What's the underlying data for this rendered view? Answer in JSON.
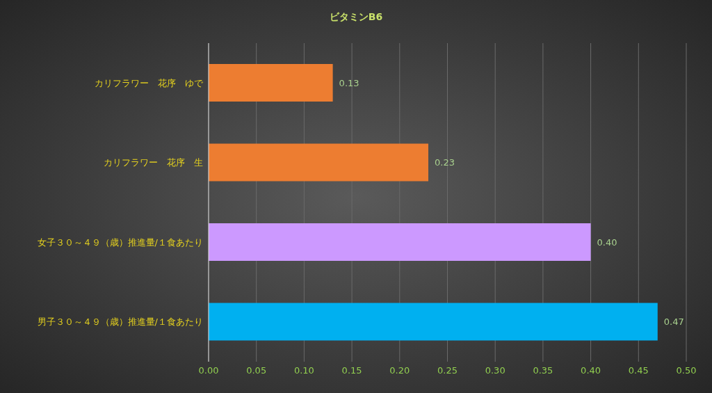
{
  "chart_data": {
    "type": "bar",
    "orientation": "horizontal",
    "title": "ビタミンB6",
    "categories": [
      "カリフラワー　花序　ゆで",
      "カリフラワー　花序　生",
      "女子３０～４９（歳）推進量/１食あたり",
      "男子３０～４９（歳）推進量/１食あたり"
    ],
    "values": [
      0.13,
      0.23,
      0.4,
      0.47
    ],
    "colors": [
      "#ed7d31",
      "#ed7d31",
      "#cc99ff",
      "#00b0f0"
    ],
    "value_labels": [
      "0.13",
      "0.23",
      "0.40",
      "0.47"
    ],
    "xlim": [
      0,
      0.5
    ],
    "xticks": [
      {
        "value": 0,
        "label": "0.00"
      },
      {
        "value": 0.05,
        "label": "0.05"
      },
      {
        "value": 0.1,
        "label": "0.10"
      },
      {
        "value": 0.15,
        "label": "0.15"
      },
      {
        "value": 0.2,
        "label": "0.20"
      },
      {
        "value": 0.25,
        "label": "0.25"
      },
      {
        "value": 0.3,
        "label": "0.30"
      },
      {
        "value": 0.35,
        "label": "0.35"
      },
      {
        "value": 0.4,
        "label": "0.40"
      },
      {
        "value": 0.45,
        "label": "0.45"
      },
      {
        "value": 0.5,
        "label": "0.50"
      }
    ],
    "grid": "x",
    "legend": false
  }
}
